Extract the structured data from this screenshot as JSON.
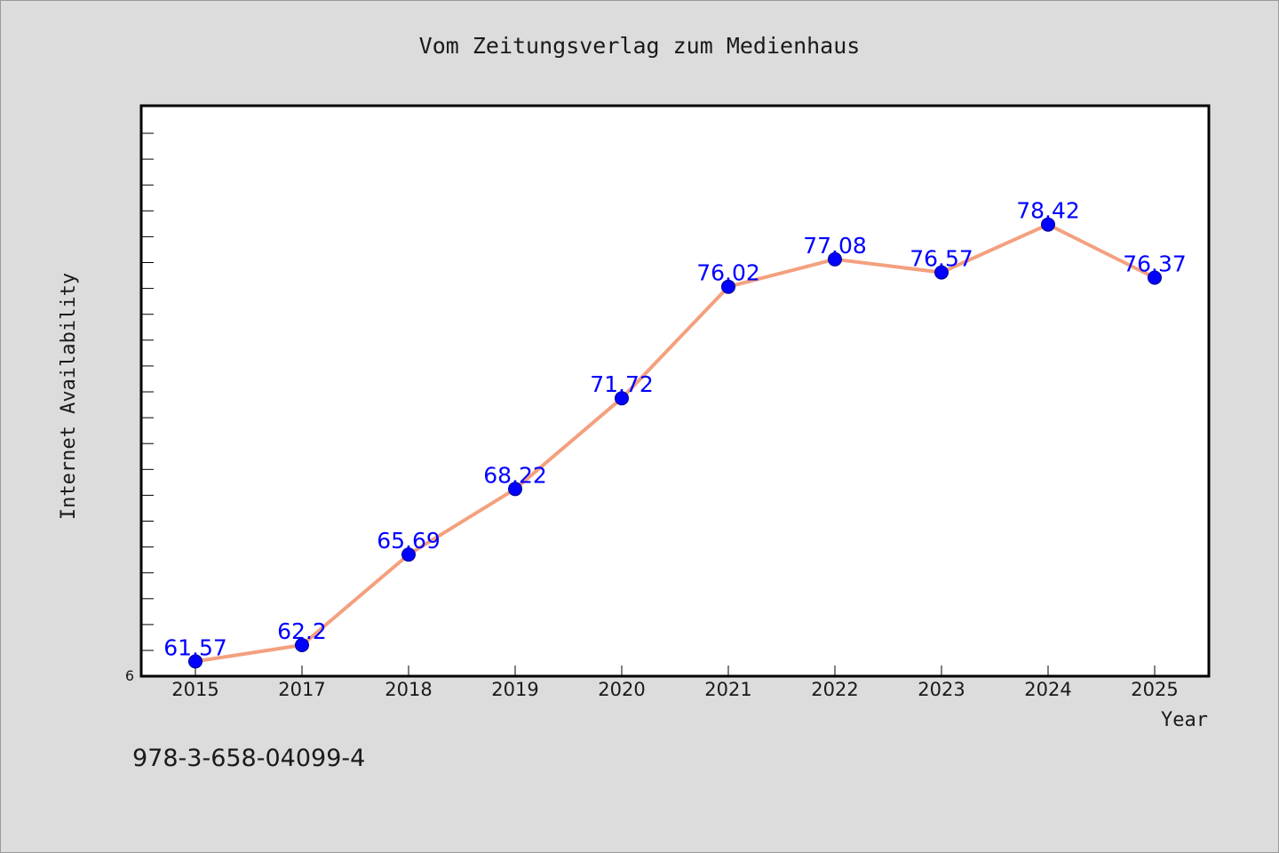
{
  "chart_data": {
    "type": "line",
    "title": "Vom Zeitungsverlag zum Medienhaus",
    "xlabel": "Year",
    "ylabel": "Internet Availability",
    "categories": [
      "2015",
      "2017",
      "2018",
      "2019",
      "2020",
      "2021",
      "2022",
      "2023",
      "2024",
      "2025"
    ],
    "series": [
      {
        "values": [
          61.57,
          62.2,
          65.69,
          68.22,
          71.72,
          76.02,
          77.08,
          76.57,
          78.42,
          76.37
        ],
        "labels": [
          "61.57",
          "62.2",
          "65.69",
          "68.22",
          "71.72",
          "76.02",
          "77.08",
          "76.57",
          "78.42",
          "76.37"
        ]
      }
    ],
    "ytick_labels": [
      "6"
    ],
    "ylim": [
      61,
      83
    ],
    "grid": false,
    "line_color": "#f4a07e",
    "marker_color": "#0000ff",
    "label_color": "#0000ff",
    "plot_background": "#ffffff",
    "figure_background": "#dcdcdc"
  },
  "footer": {
    "isbn": "978-3-658-04099-4"
  }
}
